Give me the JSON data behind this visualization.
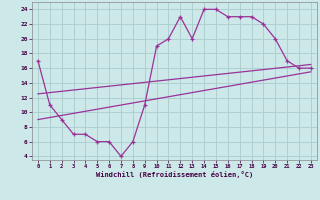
{
  "xlabel": "Windchill (Refroidissement éolien,°C)",
  "line_color": "#993399",
  "bg_color": "#cce8e8",
  "grid_color": "#aacccc",
  "curve_x": [
    0,
    1,
    2,
    3,
    4,
    5,
    6,
    7,
    8,
    9,
    10,
    11,
    12,
    13,
    14,
    15,
    16,
    17,
    18,
    19,
    20,
    21,
    22,
    23
  ],
  "curve_y": [
    17,
    11,
    9,
    7,
    7,
    6,
    6,
    4,
    6,
    11,
    19,
    20,
    23,
    20,
    24,
    24,
    23,
    23,
    23,
    22,
    20,
    17,
    16,
    16
  ],
  "line1_x": [
    0,
    23
  ],
  "line1_y": [
    12.5,
    16.5
  ],
  "line2_x": [
    0,
    23
  ],
  "line2_y": [
    9.0,
    15.5
  ],
  "xlim": [
    -0.5,
    23.5
  ],
  "ylim": [
    3.5,
    25.0
  ],
  "xticks": [
    0,
    1,
    2,
    3,
    4,
    5,
    6,
    7,
    8,
    9,
    10,
    11,
    12,
    13,
    14,
    15,
    16,
    17,
    18,
    19,
    20,
    21,
    22,
    23
  ],
  "yticks": [
    4,
    6,
    8,
    10,
    12,
    14,
    16,
    18,
    20,
    22,
    24
  ]
}
